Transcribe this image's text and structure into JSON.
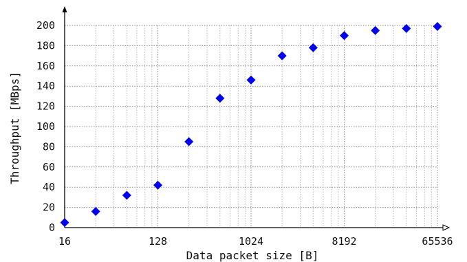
{
  "chart_data": {
    "type": "scatter",
    "title": "",
    "xlabel": "Data packet size [B]",
    "ylabel": "Throughput [MBps]",
    "x_scale": "log2",
    "xlim": [
      16,
      65536
    ],
    "ylim": [
      0,
      200
    ],
    "x_ticks": [
      16,
      128,
      1024,
      8192,
      65536
    ],
    "x_tick_labels": [
      "16",
      "128",
      "1024",
      "8192",
      "65536"
    ],
    "y_ticks": [
      0,
      20,
      40,
      60,
      80,
      100,
      120,
      140,
      160,
      180,
      200
    ],
    "y_tick_labels": [
      "0",
      "20",
      "40",
      "60",
      "80",
      "100",
      "120",
      "140",
      "160",
      "180",
      "200"
    ],
    "grid": true,
    "marker": "diamond",
    "marker_color": "#0000ee",
    "series": [
      {
        "x": [
          16,
          32,
          64,
          128,
          256,
          512,
          1024,
          2048,
          4096,
          8192,
          16384,
          32768,
          65536
        ],
        "y": [
          5,
          16,
          32,
          42,
          85,
          128,
          146,
          170,
          178,
          190,
          195,
          197,
          199
        ]
      }
    ]
  }
}
